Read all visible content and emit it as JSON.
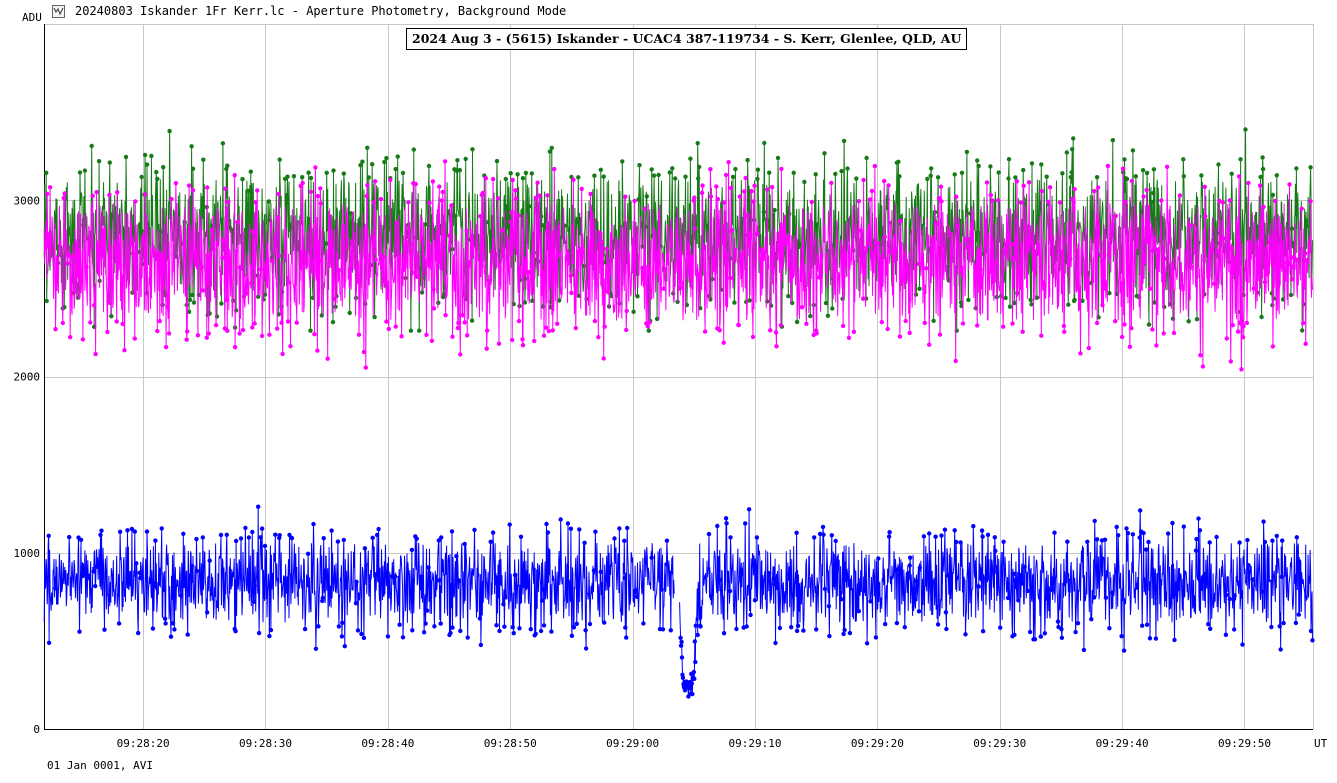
{
  "window": {
    "title": "20240803 Iskander 1Fr Kerr.lc - Aperture Photometry, Background Mode",
    "icon": "lightcurve-app-icon"
  },
  "plot": {
    "caption": "2024 Aug 3 - (5615) Iskander - UCAC4 387-119734 - S. Kerr, Glenlee, QLD, AU",
    "footer": "01 Jan 0001, AVI"
  },
  "chart_data": {
    "type": "line",
    "ylabel": "ADU",
    "xlabel": "UT",
    "ylim": [
      0,
      4000
    ],
    "yticks": [
      0,
      1000,
      2000,
      3000
    ],
    "ytick_labels": [
      "0",
      "1000",
      "2000",
      "3000"
    ],
    "xlim_seconds": [
      11.9,
      115.6
    ],
    "xticks_seconds": [
      20,
      30,
      40,
      50,
      60,
      70,
      80,
      90,
      100,
      110
    ],
    "xtick_labels": [
      "09:28:20",
      "09:28:30",
      "09:28:40",
      "09:28:50",
      "09:29:00",
      "09:29:10",
      "09:29:20",
      "09:29:30",
      "09:29:40",
      "09:29:50"
    ],
    "grid": true,
    "legend": "none",
    "frame_rate_approx": 25,
    "series": [
      {
        "color": "#167A16",
        "baseline": 2800,
        "noise_range": [
          2300,
          3500
        ],
        "event": null
      },
      {
        "color": "#FF00FF",
        "baseline": 2650,
        "noise_range": [
          2000,
          3250
        ],
        "event": null
      },
      {
        "color": "#0000FF",
        "baseline": 830,
        "noise_range": [
          450,
          1300
        ],
        "event": {
          "start": 63.8,
          "end": 65.3,
          "level": 250,
          "gap_start": 63.4,
          "gap_end": 63.8
        }
      }
    ],
    "colors": {
      "grid": "#C8C8C8",
      "axis": "#000000"
    }
  }
}
